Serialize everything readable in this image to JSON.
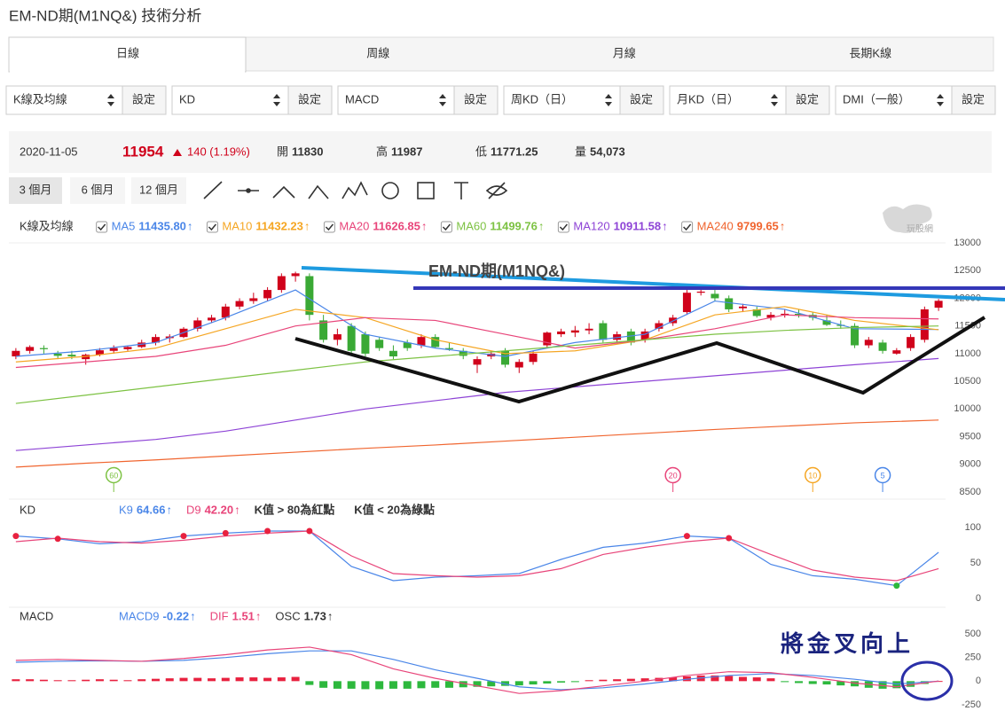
{
  "header": {
    "title": "EM-ND期(M1NQ&) 技術分析"
  },
  "tabs": [
    "日線",
    "周線",
    "月線",
    "長期K線"
  ],
  "selectors": [
    {
      "label": "K線及均線",
      "button": "設定"
    },
    {
      "label": "KD",
      "button": "設定"
    },
    {
      "label": "MACD",
      "button": "設定"
    },
    {
      "label": "周KD（日）",
      "button": "設定"
    },
    {
      "label": "月KD（日）",
      "button": "設定"
    },
    {
      "label": "DMI（一般）",
      "button": "設定"
    }
  ],
  "quote": {
    "date": "2020-11-05",
    "price": "11954",
    "change": "140 (1.19%)",
    "fields": [
      {
        "label": "開",
        "value": "11830"
      },
      {
        "label": "高",
        "value": "11987"
      },
      {
        "label": "低",
        "value": "11771.25"
      },
      {
        "label": "量",
        "value": "54,073"
      }
    ]
  },
  "ranges": [
    "3 個月",
    "6 個月",
    "12 個月"
  ],
  "logo": "玩股網",
  "chart_data": [
    {
      "type": "candlestick",
      "title": "K線及均線",
      "checkboxes": true,
      "up_color": "#d0021b",
      "down_color": "#3aa935",
      "xlim": [
        -0.5,
        66.5
      ],
      "ylim": [
        8500,
        13000
      ],
      "yticks": [
        8500,
        9000,
        9500,
        10000,
        10500,
        11000,
        11500,
        12000,
        12500,
        13000
      ],
      "open": [
        10950,
        11050,
        11100,
        11000,
        10980,
        10900,
        10980,
        11050,
        11080,
        11120,
        11200,
        11280,
        11300,
        11450,
        11600,
        11650,
        11850,
        11950,
        12000,
        12150,
        12400,
        12400,
        11600,
        11250,
        11500,
        11350,
        11250,
        11050,
        11200,
        11150,
        11300,
        11100,
        11050,
        10800,
        10950,
        11050,
        10750,
        10850,
        11150,
        11350,
        11380,
        11420,
        11550,
        11250,
        11400,
        11250,
        11450,
        11550,
        11750,
        12100,
        12080,
        12000,
        11820,
        11800,
        11650,
        11700,
        11720,
        11700,
        11600,
        11520,
        11500,
        11150,
        11200,
        11000,
        11100,
        11250,
        11830
      ],
      "high": [
        11100,
        11150,
        11150,
        11050,
        11050,
        11000,
        11100,
        11150,
        11150,
        11250,
        11350,
        11350,
        11480,
        11650,
        11700,
        11900,
        12000,
        12100,
        12200,
        12450,
        12480,
        12450,
        11700,
        11450,
        11550,
        11400,
        11300,
        11150,
        11250,
        11350,
        11350,
        11200,
        11100,
        10950,
        11050,
        11100,
        10900,
        11050,
        11400,
        11450,
        11500,
        11550,
        11600,
        11400,
        11450,
        11450,
        11600,
        11700,
        12150,
        12200,
        12150,
        12050,
        11900,
        11850,
        11750,
        11800,
        11800,
        11750,
        11700,
        11600,
        11550,
        11300,
        11250,
        11100,
        11350,
        11850,
        11987
      ],
      "low": [
        10900,
        11000,
        11000,
        10900,
        10900,
        10800,
        10950,
        11000,
        11050,
        11100,
        11150,
        11200,
        11280,
        11400,
        11550,
        11600,
        11800,
        11900,
        11950,
        12100,
        12300,
        11600,
        11200,
        11150,
        11000,
        10950,
        11050,
        10900,
        11050,
        11100,
        11100,
        11050,
        10900,
        10650,
        10900,
        10750,
        10650,
        10800,
        11100,
        11300,
        11300,
        11350,
        11200,
        11200,
        11150,
        11200,
        11400,
        11500,
        11700,
        12050,
        11950,
        11750,
        11750,
        11650,
        11600,
        11650,
        11650,
        11600,
        11500,
        11450,
        11100,
        11100,
        11000,
        10980,
        11050,
        11200,
        11771.25
      ],
      "close": [
        11050,
        11120,
        11080,
        10960,
        10950,
        10980,
        11060,
        11100,
        11120,
        11200,
        11300,
        11310,
        11450,
        11600,
        11650,
        11850,
        11950,
        12000,
        12150,
        12400,
        12450,
        11700,
        11250,
        11350,
        11050,
        11000,
        11100,
        10950,
        11100,
        11300,
        11120,
        11080,
        10960,
        10900,
        11000,
        10800,
        10850,
        11000,
        11380,
        11400,
        11420,
        11450,
        11250,
        11350,
        11200,
        11400,
        11550,
        11650,
        12100,
        12120,
        12000,
        11800,
        11850,
        11680,
        11700,
        11720,
        11700,
        11650,
        11520,
        11500,
        11150,
        11250,
        11050,
        11060,
        11300,
        11800,
        11954
      ],
      "series": [
        {
          "name": "MA5",
          "value_label": "11435.80",
          "trend": "↑",
          "color": "#4a86e8",
          "x": [
            0,
            5,
            10,
            15,
            20,
            25,
            30,
            35,
            40,
            45,
            50,
            55,
            60,
            66
          ],
          "values": [
            10950,
            11050,
            11200,
            11650,
            12150,
            11350,
            11100,
            10950,
            11200,
            11350,
            11950,
            11800,
            11450,
            11436
          ]
        },
        {
          "name": "MA10",
          "value_label": "11432.23",
          "trend": "↑",
          "color": "#f5a623",
          "x": [
            0,
            5,
            10,
            15,
            20,
            25,
            30,
            35,
            40,
            45,
            50,
            55,
            60,
            66
          ],
          "values": [
            10850,
            10950,
            11100,
            11450,
            11800,
            11650,
            11250,
            11000,
            11050,
            11250,
            11700,
            11850,
            11600,
            11432
          ]
        },
        {
          "name": "MA20",
          "value_label": "11626.85",
          "trend": "↑",
          "color": "#e8457a",
          "x": [
            0,
            5,
            10,
            15,
            20,
            25,
            30,
            35,
            40,
            45,
            50,
            55,
            60,
            66
          ],
          "values": [
            10750,
            10850,
            10950,
            11150,
            11500,
            11650,
            11600,
            11350,
            11100,
            11250,
            11450,
            11700,
            11650,
            11627
          ]
        },
        {
          "name": "MA60",
          "value_label": "11499.76",
          "trend": "↑",
          "color": "#7dc243",
          "x": [
            0,
            5,
            10,
            15,
            20,
            25,
            30,
            35,
            40,
            45,
            50,
            55,
            60,
            66
          ],
          "values": [
            10100,
            10250,
            10400,
            10550,
            10700,
            10850,
            10950,
            11050,
            11150,
            11250,
            11350,
            11420,
            11470,
            11500
          ]
        },
        {
          "name": "MA120",
          "value_label": "10911.58",
          "trend": "↑",
          "color": "#8e44d6",
          "x": [
            0,
            5,
            10,
            15,
            20,
            25,
            30,
            35,
            40,
            45,
            50,
            55,
            60,
            66
          ],
          "values": [
            9250,
            9350,
            9450,
            9600,
            9800,
            10000,
            10150,
            10300,
            10400,
            10500,
            10600,
            10700,
            10800,
            10912
          ]
        },
        {
          "name": "MA240",
          "value_label": "9799.65",
          "trend": "↑",
          "color": "#f0652f",
          "x": [
            0,
            5,
            10,
            15,
            20,
            25,
            30,
            35,
            40,
            45,
            50,
            55,
            60,
            66
          ],
          "values": [
            8950,
            9020,
            9080,
            9150,
            9220,
            9290,
            9350,
            9420,
            9490,
            9560,
            9630,
            9690,
            9750,
            9800
          ]
        }
      ],
      "signals": [
        {
          "x": 7,
          "label": 60,
          "color": "#7dc243"
        },
        {
          "x": 47,
          "label": 20,
          "color": "#e8457a"
        },
        {
          "x": 57,
          "label": 10,
          "color": "#f5a623"
        },
        {
          "x": 62,
          "label": 5,
          "color": "#4a86e8"
        }
      ],
      "annotations": [
        "EM-ND期(M1NQ&)",
        "將金叉向上"
      ]
    },
    {
      "type": "line",
      "title": "KD",
      "notes": [
        "K值 > 80為紅點",
        "K值 < 20為綠點"
      ],
      "dot_above": 80,
      "dot_below": 20,
      "dot_colors": [
        "#e8213f",
        "#2db83d"
      ],
      "xlim": [
        -0.5,
        66.5
      ],
      "ylim": [
        0,
        100
      ],
      "yticks": [
        0,
        50,
        100
      ],
      "series": [
        {
          "name": "K9",
          "value_label": "64.66",
          "trend": "↑",
          "color": "#4a86e8",
          "x": [
            0,
            3,
            6,
            9,
            12,
            15,
            18,
            21,
            24,
            27,
            30,
            33,
            36,
            39,
            42,
            45,
            48,
            51,
            54,
            57,
            60,
            63,
            66
          ],
          "values": [
            88,
            84,
            77,
            80,
            88,
            92,
            95,
            95,
            45,
            25,
            30,
            32,
            35,
            55,
            72,
            78,
            88,
            85,
            48,
            32,
            27,
            18,
            65
          ]
        },
        {
          "name": "D9",
          "value_label": "42.20",
          "trend": "↑",
          "color": "#e8457a",
          "x": [
            0,
            3,
            6,
            9,
            12,
            15,
            18,
            21,
            24,
            27,
            30,
            33,
            36,
            39,
            42,
            45,
            48,
            51,
            54,
            57,
            60,
            63,
            66
          ],
          "values": [
            80,
            85,
            80,
            78,
            82,
            88,
            92,
            95,
            60,
            35,
            32,
            30,
            32,
            42,
            62,
            72,
            80,
            85,
            62,
            40,
            30,
            25,
            42
          ]
        }
      ]
    },
    {
      "type": "macd",
      "title": "MACD",
      "up_color": "#e8213f",
      "down_color": "#2db83d",
      "xlim": [
        -0.5,
        66.5
      ],
      "ylim": [
        -250,
        500
      ],
      "yticks": [
        -250,
        0,
        250,
        500
      ],
      "series": [
        {
          "name": "MACD9",
          "value_label": "-0.22",
          "trend": "↑",
          "color": "#4a86e8",
          "x": [
            0,
            3,
            6,
            9,
            12,
            15,
            18,
            21,
            24,
            27,
            30,
            33,
            36,
            39,
            42,
            45,
            48,
            51,
            54,
            57,
            60,
            63,
            66
          ],
          "values": [
            200,
            210,
            215,
            210,
            220,
            250,
            290,
            320,
            320,
            230,
            120,
            30,
            -60,
            -90,
            -70,
            -30,
            20,
            60,
            80,
            60,
            20,
            -30,
            -0.22
          ]
        },
        {
          "name": "DIF",
          "value_label": "1.51",
          "trend": "↑",
          "color": "#e8457a",
          "x": [
            0,
            3,
            6,
            9,
            12,
            15,
            18,
            21,
            24,
            27,
            30,
            33,
            36,
            39,
            42,
            45,
            48,
            51,
            54,
            57,
            60,
            63,
            66
          ],
          "values": [
            220,
            230,
            220,
            210,
            240,
            280,
            330,
            360,
            280,
            130,
            30,
            -50,
            -130,
            -100,
            -50,
            0,
            60,
            100,
            90,
            40,
            -20,
            -60,
            1.51
          ]
        },
        {
          "name": "OSC",
          "value_label": "1.73",
          "trend": "↑",
          "color": "#333333",
          "style": "bar",
          "values": [
            20,
            20,
            15,
            10,
            10,
            15,
            20,
            15,
            10,
            20,
            25,
            30,
            35,
            35,
            30,
            35,
            40,
            40,
            35,
            40,
            45,
            -40,
            -70,
            -80,
            -80,
            -85,
            -85,
            -80,
            -80,
            -75,
            -70,
            -70,
            -65,
            -60,
            -55,
            -50,
            -45,
            -35,
            -25,
            -15,
            -10,
            10,
            15,
            20,
            25,
            30,
            35,
            40,
            50,
            60,
            60,
            55,
            45,
            40,
            30,
            -10,
            -20,
            -30,
            -35,
            -45,
            -55,
            -70,
            -80,
            -75,
            -60,
            -30,
            1.73
          ]
        }
      ]
    }
  ]
}
